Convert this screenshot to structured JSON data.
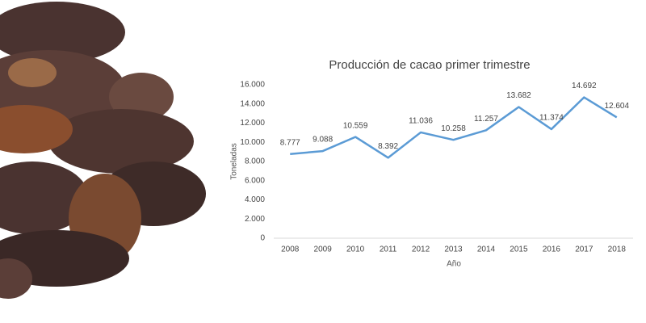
{
  "chart_data": {
    "type": "line",
    "title": "Producción de cacao primer trimestre",
    "x_label": "Año",
    "y_label": "Toneladas",
    "categories": [
      "2008",
      "2009",
      "2010",
      "2011",
      "2012",
      "2013",
      "2014",
      "2015",
      "2016",
      "2017",
      "2018"
    ],
    "series": [
      {
        "color": "#5b9bd5",
        "values": [
          8777,
          9088,
          10559,
          8392,
          11036,
          10258,
          11257,
          13682,
          11374,
          14692,
          12604
        ],
        "value_labels": [
          "8.777",
          "9.088",
          "10.559",
          "8.392",
          "11.036",
          "10.258",
          "11.257",
          "13.682",
          "11.374",
          "14.692",
          "12.604"
        ]
      }
    ],
    "ylim": [
      0,
      16000
    ],
    "yticks": [
      0,
      {
        "value": 2000,
        "label": "2.000"
      },
      {
        "value": 4000,
        "label": "4.000"
      },
      {
        "value": 6000,
        "label": "6.000"
      },
      {
        "value": 8000,
        "label": "8.000"
      },
      {
        "value": 10000,
        "label": "10.000"
      },
      {
        "value": 12000,
        "label": "12.000"
      },
      {
        "value": 14000,
        "label": "14.000"
      },
      {
        "value": 16000,
        "label": "16.000"
      }
    ],
    "grid": false
  }
}
